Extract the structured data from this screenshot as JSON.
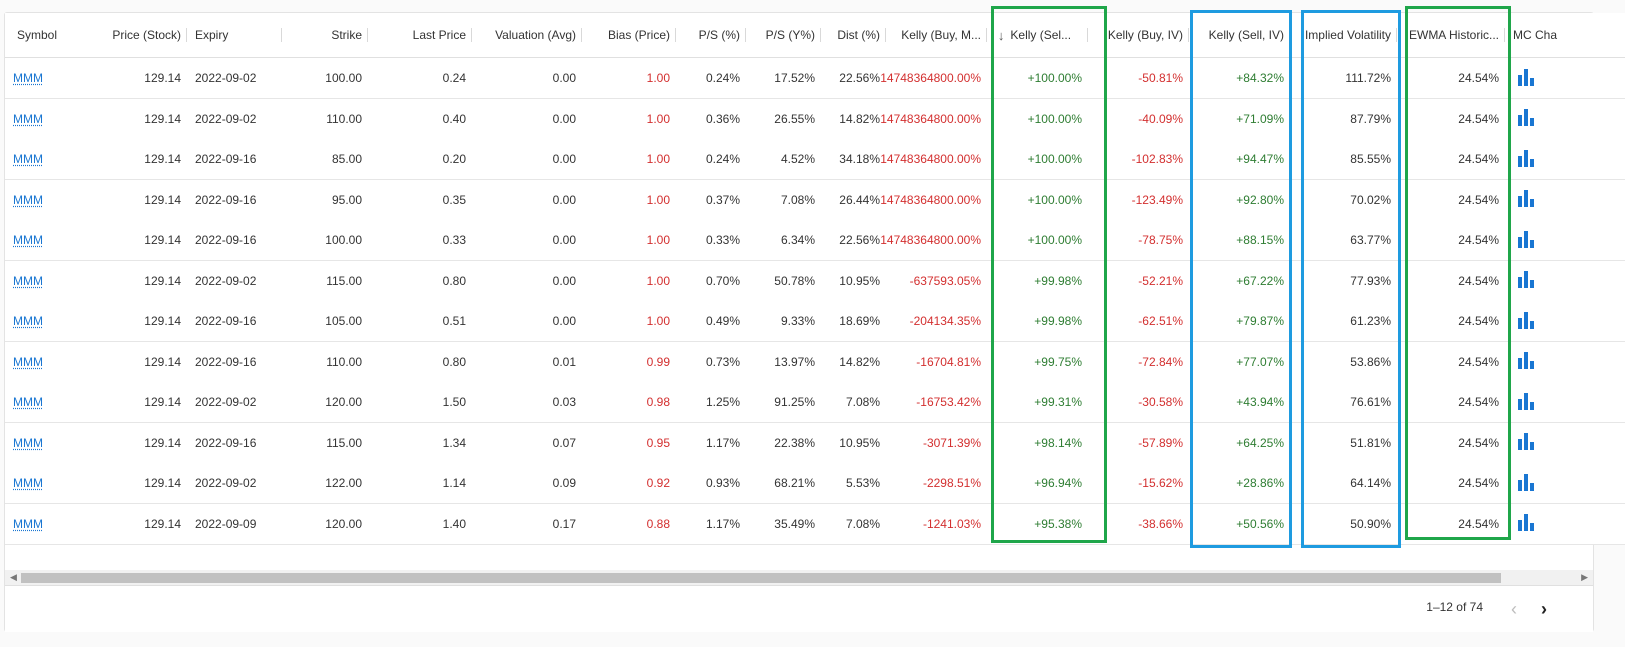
{
  "columns": [
    {
      "key": "symbol",
      "label": "Symbol",
      "align": "l",
      "type": "link"
    },
    {
      "key": "price",
      "label": "Price (Stock)",
      "align": "r"
    },
    {
      "key": "expiry",
      "label": "Expiry",
      "align": "l"
    },
    {
      "key": "strike",
      "label": "Strike",
      "align": "r"
    },
    {
      "key": "last",
      "label": "Last Price",
      "align": "r"
    },
    {
      "key": "valuation",
      "label": "Valuation (Avg)",
      "align": "r"
    },
    {
      "key": "bias",
      "label": "Bias (Price)",
      "align": "r",
      "color": "red"
    },
    {
      "key": "ps",
      "label": "P/S (%)",
      "align": "r"
    },
    {
      "key": "psy",
      "label": "P/S (Y%)",
      "align": "r"
    },
    {
      "key": "dist",
      "label": "Dist (%)",
      "align": "r"
    },
    {
      "key": "kbm",
      "label": "Kelly (Buy, M...",
      "align": "r",
      "color": "red"
    },
    {
      "key": "ksel",
      "label": "Kelly (Sel...",
      "align": "r",
      "color": "green",
      "sorted": true
    },
    {
      "key": "kbiv",
      "label": "Kelly (Buy, IV)",
      "align": "r",
      "color": "red"
    },
    {
      "key": "ksiv",
      "label": "Kelly (Sell, IV)",
      "align": "r",
      "color": "green"
    },
    {
      "key": "iv",
      "label": "Implied Volatility",
      "align": "r"
    },
    {
      "key": "ewma",
      "label": "EWMA Historic...",
      "align": "r"
    },
    {
      "key": "mc",
      "label": "MC Cha",
      "align": "l",
      "type": "chart"
    }
  ],
  "rows": [
    {
      "symbol": "MMM",
      "price": "129.14",
      "expiry": "2022-09-02",
      "strike": "100.00",
      "last": "0.24",
      "valuation": "0.00",
      "bias": "1.00",
      "ps": "0.24%",
      "psy": "17.52%",
      "dist": "22.56%",
      "kbm": "14748364800.00%",
      "ksel": "+100.00%",
      "kbiv": "-50.81%",
      "ksiv": "+84.32%",
      "iv": "111.72%",
      "ewma": "24.54%"
    },
    {
      "symbol": "MMM",
      "price": "129.14",
      "expiry": "2022-09-02",
      "strike": "110.00",
      "last": "0.40",
      "valuation": "0.00",
      "bias": "1.00",
      "ps": "0.36%",
      "psy": "26.55%",
      "dist": "14.82%",
      "kbm": "14748364800.00%",
      "ksel": "+100.00%",
      "kbiv": "-40.09%",
      "ksiv": "+71.09%",
      "iv": "87.79%",
      "ewma": "24.54%"
    },
    {
      "symbol": "MMM",
      "price": "129.14",
      "expiry": "2022-09-16",
      "strike": "85.00",
      "last": "0.20",
      "valuation": "0.00",
      "bias": "1.00",
      "ps": "0.24%",
      "psy": "4.52%",
      "dist": "34.18%",
      "kbm": "14748364800.00%",
      "ksel": "+100.00%",
      "kbiv": "-102.83%",
      "ksiv": "+94.47%",
      "iv": "85.55%",
      "ewma": "24.54%"
    },
    {
      "symbol": "MMM",
      "price": "129.14",
      "expiry": "2022-09-16",
      "strike": "95.00",
      "last": "0.35",
      "valuation": "0.00",
      "bias": "1.00",
      "ps": "0.37%",
      "psy": "7.08%",
      "dist": "26.44%",
      "kbm": "14748364800.00%",
      "ksel": "+100.00%",
      "kbiv": "-123.49%",
      "ksiv": "+92.80%",
      "iv": "70.02%",
      "ewma": "24.54%"
    },
    {
      "symbol": "MMM",
      "price": "129.14",
      "expiry": "2022-09-16",
      "strike": "100.00",
      "last": "0.33",
      "valuation": "0.00",
      "bias": "1.00",
      "ps": "0.33%",
      "psy": "6.34%",
      "dist": "22.56%",
      "kbm": "14748364800.00%",
      "ksel": "+100.00%",
      "kbiv": "-78.75%",
      "ksiv": "+88.15%",
      "iv": "63.77%",
      "ewma": "24.54%"
    },
    {
      "symbol": "MMM",
      "price": "129.14",
      "expiry": "2022-09-02",
      "strike": "115.00",
      "last": "0.80",
      "valuation": "0.00",
      "bias": "1.00",
      "ps": "0.70%",
      "psy": "50.78%",
      "dist": "10.95%",
      "kbm": "-637593.05%",
      "ksel": "+99.98%",
      "kbiv": "-52.21%",
      "ksiv": "+67.22%",
      "iv": "77.93%",
      "ewma": "24.54%"
    },
    {
      "symbol": "MMM",
      "price": "129.14",
      "expiry": "2022-09-16",
      "strike": "105.00",
      "last": "0.51",
      "valuation": "0.00",
      "bias": "1.00",
      "ps": "0.49%",
      "psy": "9.33%",
      "dist": "18.69%",
      "kbm": "-204134.35%",
      "ksel": "+99.98%",
      "kbiv": "-62.51%",
      "ksiv": "+79.87%",
      "iv": "61.23%",
      "ewma": "24.54%"
    },
    {
      "symbol": "MMM",
      "price": "129.14",
      "expiry": "2022-09-16",
      "strike": "110.00",
      "last": "0.80",
      "valuation": "0.01",
      "bias": "0.99",
      "ps": "0.73%",
      "psy": "13.97%",
      "dist": "14.82%",
      "kbm": "-16704.81%",
      "ksel": "+99.75%",
      "kbiv": "-72.84%",
      "ksiv": "+77.07%",
      "iv": "53.86%",
      "ewma": "24.54%"
    },
    {
      "symbol": "MMM",
      "price": "129.14",
      "expiry": "2022-09-02",
      "strike": "120.00",
      "last": "1.50",
      "valuation": "0.03",
      "bias": "0.98",
      "ps": "1.25%",
      "psy": "91.25%",
      "dist": "7.08%",
      "kbm": "-16753.42%",
      "ksel": "+99.31%",
      "kbiv": "-30.58%",
      "ksiv": "+43.94%",
      "iv": "76.61%",
      "ewma": "24.54%"
    },
    {
      "symbol": "MMM",
      "price": "129.14",
      "expiry": "2022-09-16",
      "strike": "115.00",
      "last": "1.34",
      "valuation": "0.07",
      "bias": "0.95",
      "ps": "1.17%",
      "psy": "22.38%",
      "dist": "10.95%",
      "kbm": "-3071.39%",
      "ksel": "+98.14%",
      "kbiv": "-57.89%",
      "ksiv": "+64.25%",
      "iv": "51.81%",
      "ewma": "24.54%"
    },
    {
      "symbol": "MMM",
      "price": "129.14",
      "expiry": "2022-09-02",
      "strike": "122.00",
      "last": "1.14",
      "valuation": "0.09",
      "bias": "0.92",
      "ps": "0.93%",
      "psy": "68.21%",
      "dist": "5.53%",
      "kbm": "-2298.51%",
      "ksel": "+96.94%",
      "kbiv": "-15.62%",
      "ksiv": "+28.86%",
      "iv": "64.14%",
      "ewma": "24.54%"
    },
    {
      "symbol": "MMM",
      "price": "129.14",
      "expiry": "2022-09-09",
      "strike": "120.00",
      "last": "1.40",
      "valuation": "0.17",
      "bias": "0.88",
      "ps": "1.17%",
      "psy": "35.49%",
      "dist": "7.08%",
      "kbm": "-1241.03%",
      "ksel": "+95.38%",
      "kbiv": "-38.66%",
      "ksiv": "+50.56%",
      "iv": "50.90%",
      "ewma": "24.54%"
    }
  ],
  "icons": {
    "sort": "arrow-down-icon",
    "chart": "bar-chart-icon",
    "prev": "chevron-left-icon",
    "next": "chevron-right-icon"
  },
  "colors": {
    "negative": "#d32f2f",
    "positive": "#2e7d32",
    "link": "#1976d2",
    "highlight_green": "#1fa64a",
    "highlight_blue": "#1e9be0"
  },
  "pagination": {
    "range": "1–12 of 74"
  }
}
